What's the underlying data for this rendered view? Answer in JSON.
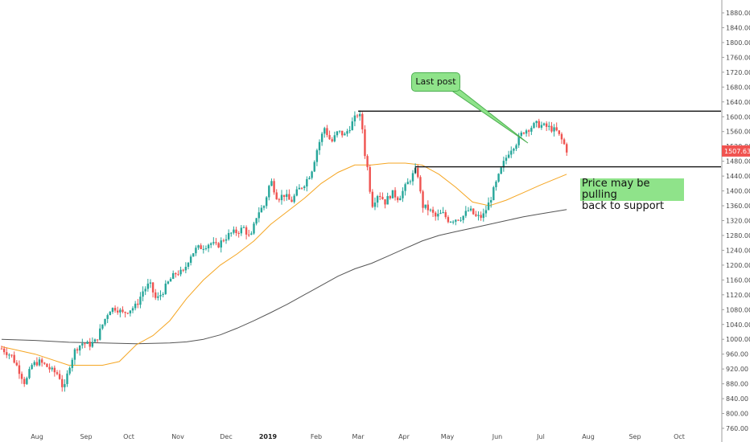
{
  "chart_data": {
    "type": "candlestick",
    "y_axis": {
      "range": [
        760,
        1900
      ],
      "ticks": [
        "1880.00",
        "1840.00",
        "1800.00",
        "1760.00",
        "1720.00",
        "1680.00",
        "1640.00",
        "1600.00",
        "1560.00",
        "1520.00",
        "1480.00",
        "1440.00",
        "1400.00",
        "1360.00",
        "1320.00",
        "1280.00",
        "1240.00",
        "1200.00",
        "1160.00",
        "1120.00",
        "1080.00",
        "1040.00",
        "1000.00",
        "960.00",
        "920.00",
        "880.00",
        "840.00",
        "800.00",
        "760.00"
      ],
      "position": "right"
    },
    "x_axis": {
      "labels": [
        "Aug",
        "Sep",
        "Oct",
        "Nov",
        "Dec",
        "2019",
        "Feb",
        "Mar",
        "Apr",
        "May",
        "Jun",
        "Jul",
        "Aug",
        "Sep",
        "Oct"
      ]
    },
    "last_price": "1507.63",
    "last_price_color": "#f05350",
    "colors": {
      "up": "#26a69a",
      "down": "#ef5350",
      "ma_fast": "#f5a623",
      "ma_slow": "#555555",
      "annotation_bg": "#8fe38a"
    },
    "price_path": [
      [
        0,
        975
      ],
      [
        6,
        955
      ],
      [
        10,
        920
      ],
      [
        14,
        880
      ],
      [
        18,
        930
      ],
      [
        22,
        940
      ],
      [
        26,
        930
      ],
      [
        30,
        915
      ],
      [
        34,
        905
      ],
      [
        37,
        860
      ],
      [
        40,
        925
      ],
      [
        44,
        975
      ],
      [
        48,
        990
      ],
      [
        52,
        985
      ],
      [
        56,
        995
      ],
      [
        60,
        1040
      ],
      [
        64,
        1080
      ],
      [
        68,
        1085
      ],
      [
        72,
        1070
      ],
      [
        76,
        1080
      ],
      [
        80,
        1090
      ],
      [
        84,
        1130
      ],
      [
        88,
        1150
      ],
      [
        92,
        1105
      ],
      [
        96,
        1130
      ],
      [
        100,
        1160
      ],
      [
        104,
        1180
      ],
      [
        108,
        1180
      ],
      [
        112,
        1225
      ],
      [
        116,
        1245
      ],
      [
        120,
        1250
      ],
      [
        124,
        1260
      ],
      [
        128,
        1250
      ],
      [
        132,
        1270
      ],
      [
        136,
        1285
      ],
      [
        140,
        1290
      ],
      [
        144,
        1300
      ],
      [
        148,
        1270
      ],
      [
        152,
        1340
      ],
      [
        156,
        1360
      ],
      [
        160,
        1430
      ],
      [
        164,
        1380
      ],
      [
        168,
        1390
      ],
      [
        172,
        1370
      ],
      [
        176,
        1400
      ],
      [
        180,
        1420
      ],
      [
        184,
        1450
      ],
      [
        188,
        1520
      ],
      [
        192,
        1570
      ],
      [
        196,
        1530
      ],
      [
        200,
        1560
      ],
      [
        204,
        1550
      ],
      [
        208,
        1580
      ],
      [
        212,
        1610
      ],
      [
        214,
        1590
      ],
      [
        216,
        1500
      ],
      [
        218,
        1450
      ],
      [
        220,
        1360
      ],
      [
        224,
        1395
      ],
      [
        228,
        1370
      ],
      [
        232,
        1395
      ],
      [
        236,
        1380
      ],
      [
        240,
        1410
      ],
      [
        244,
        1440
      ],
      [
        247,
        1460
      ],
      [
        250,
        1360
      ],
      [
        254,
        1350
      ],
      [
        258,
        1330
      ],
      [
        262,
        1340
      ],
      [
        266,
        1320
      ],
      [
        270,
        1325
      ],
      [
        274,
        1330
      ],
      [
        278,
        1350
      ],
      [
        282,
        1330
      ],
      [
        286,
        1330
      ],
      [
        290,
        1370
      ],
      [
        294,
        1420
      ],
      [
        298,
        1470
      ],
      [
        302,
        1510
      ],
      [
        306,
        1530
      ],
      [
        310,
        1560
      ],
      [
        314,
        1570
      ],
      [
        318,
        1580
      ],
      [
        322,
        1575
      ],
      [
        326,
        1570
      ],
      [
        330,
        1560
      ],
      [
        334,
        1530
      ],
      [
        336,
        1510
      ]
    ],
    "ma_fast": [
      [
        0,
        980
      ],
      [
        20,
        960
      ],
      [
        40,
        930
      ],
      [
        60,
        930
      ],
      [
        70,
        940
      ],
      [
        80,
        985
      ],
      [
        90,
        1010
      ],
      [
        100,
        1050
      ],
      [
        110,
        1110
      ],
      [
        120,
        1160
      ],
      [
        130,
        1200
      ],
      [
        140,
        1230
      ],
      [
        150,
        1265
      ],
      [
        160,
        1310
      ],
      [
        170,
        1345
      ],
      [
        180,
        1380
      ],
      [
        190,
        1420
      ],
      [
        200,
        1450
      ],
      [
        210,
        1470
      ],
      [
        220,
        1470
      ],
      [
        230,
        1475
      ],
      [
        240,
        1475
      ],
      [
        250,
        1470
      ],
      [
        260,
        1445
      ],
      [
        270,
        1410
      ],
      [
        280,
        1370
      ],
      [
        290,
        1360
      ],
      [
        300,
        1375
      ],
      [
        310,
        1395
      ],
      [
        320,
        1415
      ],
      [
        336,
        1445
      ]
    ],
    "ma_slow": [
      [
        0,
        1000
      ],
      [
        20,
        997
      ],
      [
        40,
        992
      ],
      [
        60,
        990
      ],
      [
        80,
        988
      ],
      [
        100,
        990
      ],
      [
        110,
        993
      ],
      [
        120,
        1000
      ],
      [
        130,
        1012
      ],
      [
        140,
        1030
      ],
      [
        150,
        1050
      ],
      [
        160,
        1072
      ],
      [
        170,
        1095
      ],
      [
        180,
        1120
      ],
      [
        190,
        1145
      ],
      [
        200,
        1170
      ],
      [
        210,
        1190
      ],
      [
        220,
        1205
      ],
      [
        230,
        1225
      ],
      [
        240,
        1245
      ],
      [
        250,
        1265
      ],
      [
        260,
        1280
      ],
      [
        270,
        1290
      ],
      [
        280,
        1300
      ],
      [
        290,
        1310
      ],
      [
        300,
        1320
      ],
      [
        310,
        1330
      ],
      [
        320,
        1338
      ],
      [
        336,
        1350
      ]
    ],
    "resistance_line": {
      "price": 1615,
      "from_day": 212
    },
    "support_line": {
      "price": 1465,
      "from_day": 246
    }
  },
  "annotations": {
    "callout": "Last post",
    "note": "Price may be pulling\nback to support"
  }
}
